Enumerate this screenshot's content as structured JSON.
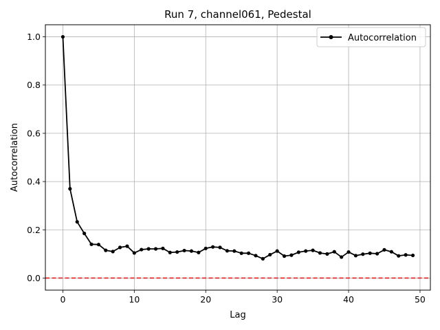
{
  "chart_data": {
    "type": "line",
    "title": "Run 7, channel061, Pedestal",
    "xlabel": "Lag",
    "ylabel": "Autocorrelation",
    "xlim": [
      -2.45,
      51.45
    ],
    "ylim": [
      -0.05,
      1.05
    ],
    "xticks": [
      0,
      10,
      20,
      30,
      40,
      50
    ],
    "yticks": [
      0.0,
      0.2,
      0.4,
      0.6,
      0.8,
      1.0
    ],
    "xtick_labels": [
      "0",
      "10",
      "20",
      "30",
      "40",
      "50"
    ],
    "ytick_labels": [
      "0.0",
      "0.2",
      "0.4",
      "0.6",
      "0.8",
      "1.0"
    ],
    "grid": true,
    "legend": {
      "position": "upper right",
      "entries": [
        "Autocorrelation"
      ]
    },
    "reference_line": {
      "y": 0.0,
      "color": "#e31a1c",
      "style": "dashed"
    },
    "series": [
      {
        "name": "Autocorrelation",
        "color": "#000000",
        "marker": "circle",
        "x": [
          0,
          1,
          2,
          3,
          4,
          5,
          6,
          7,
          8,
          9,
          10,
          11,
          12,
          13,
          14,
          15,
          16,
          17,
          18,
          19,
          20,
          21,
          22,
          23,
          24,
          25,
          26,
          27,
          28,
          29,
          30,
          31,
          32,
          33,
          34,
          35,
          36,
          37,
          38,
          39,
          40,
          41,
          42,
          43,
          44,
          45,
          46,
          47,
          48,
          49
        ],
        "y": [
          1.0,
          0.37,
          0.233,
          0.185,
          0.14,
          0.139,
          0.115,
          0.11,
          0.127,
          0.132,
          0.104,
          0.118,
          0.121,
          0.121,
          0.123,
          0.106,
          0.108,
          0.114,
          0.112,
          0.106,
          0.123,
          0.129,
          0.127,
          0.113,
          0.112,
          0.103,
          0.103,
          0.093,
          0.08,
          0.097,
          0.112,
          0.091,
          0.095,
          0.107,
          0.112,
          0.115,
          0.104,
          0.1,
          0.109,
          0.087,
          0.108,
          0.093,
          0.099,
          0.103,
          0.101,
          0.117,
          0.109,
          0.092,
          0.096,
          0.094
        ]
      }
    ]
  }
}
